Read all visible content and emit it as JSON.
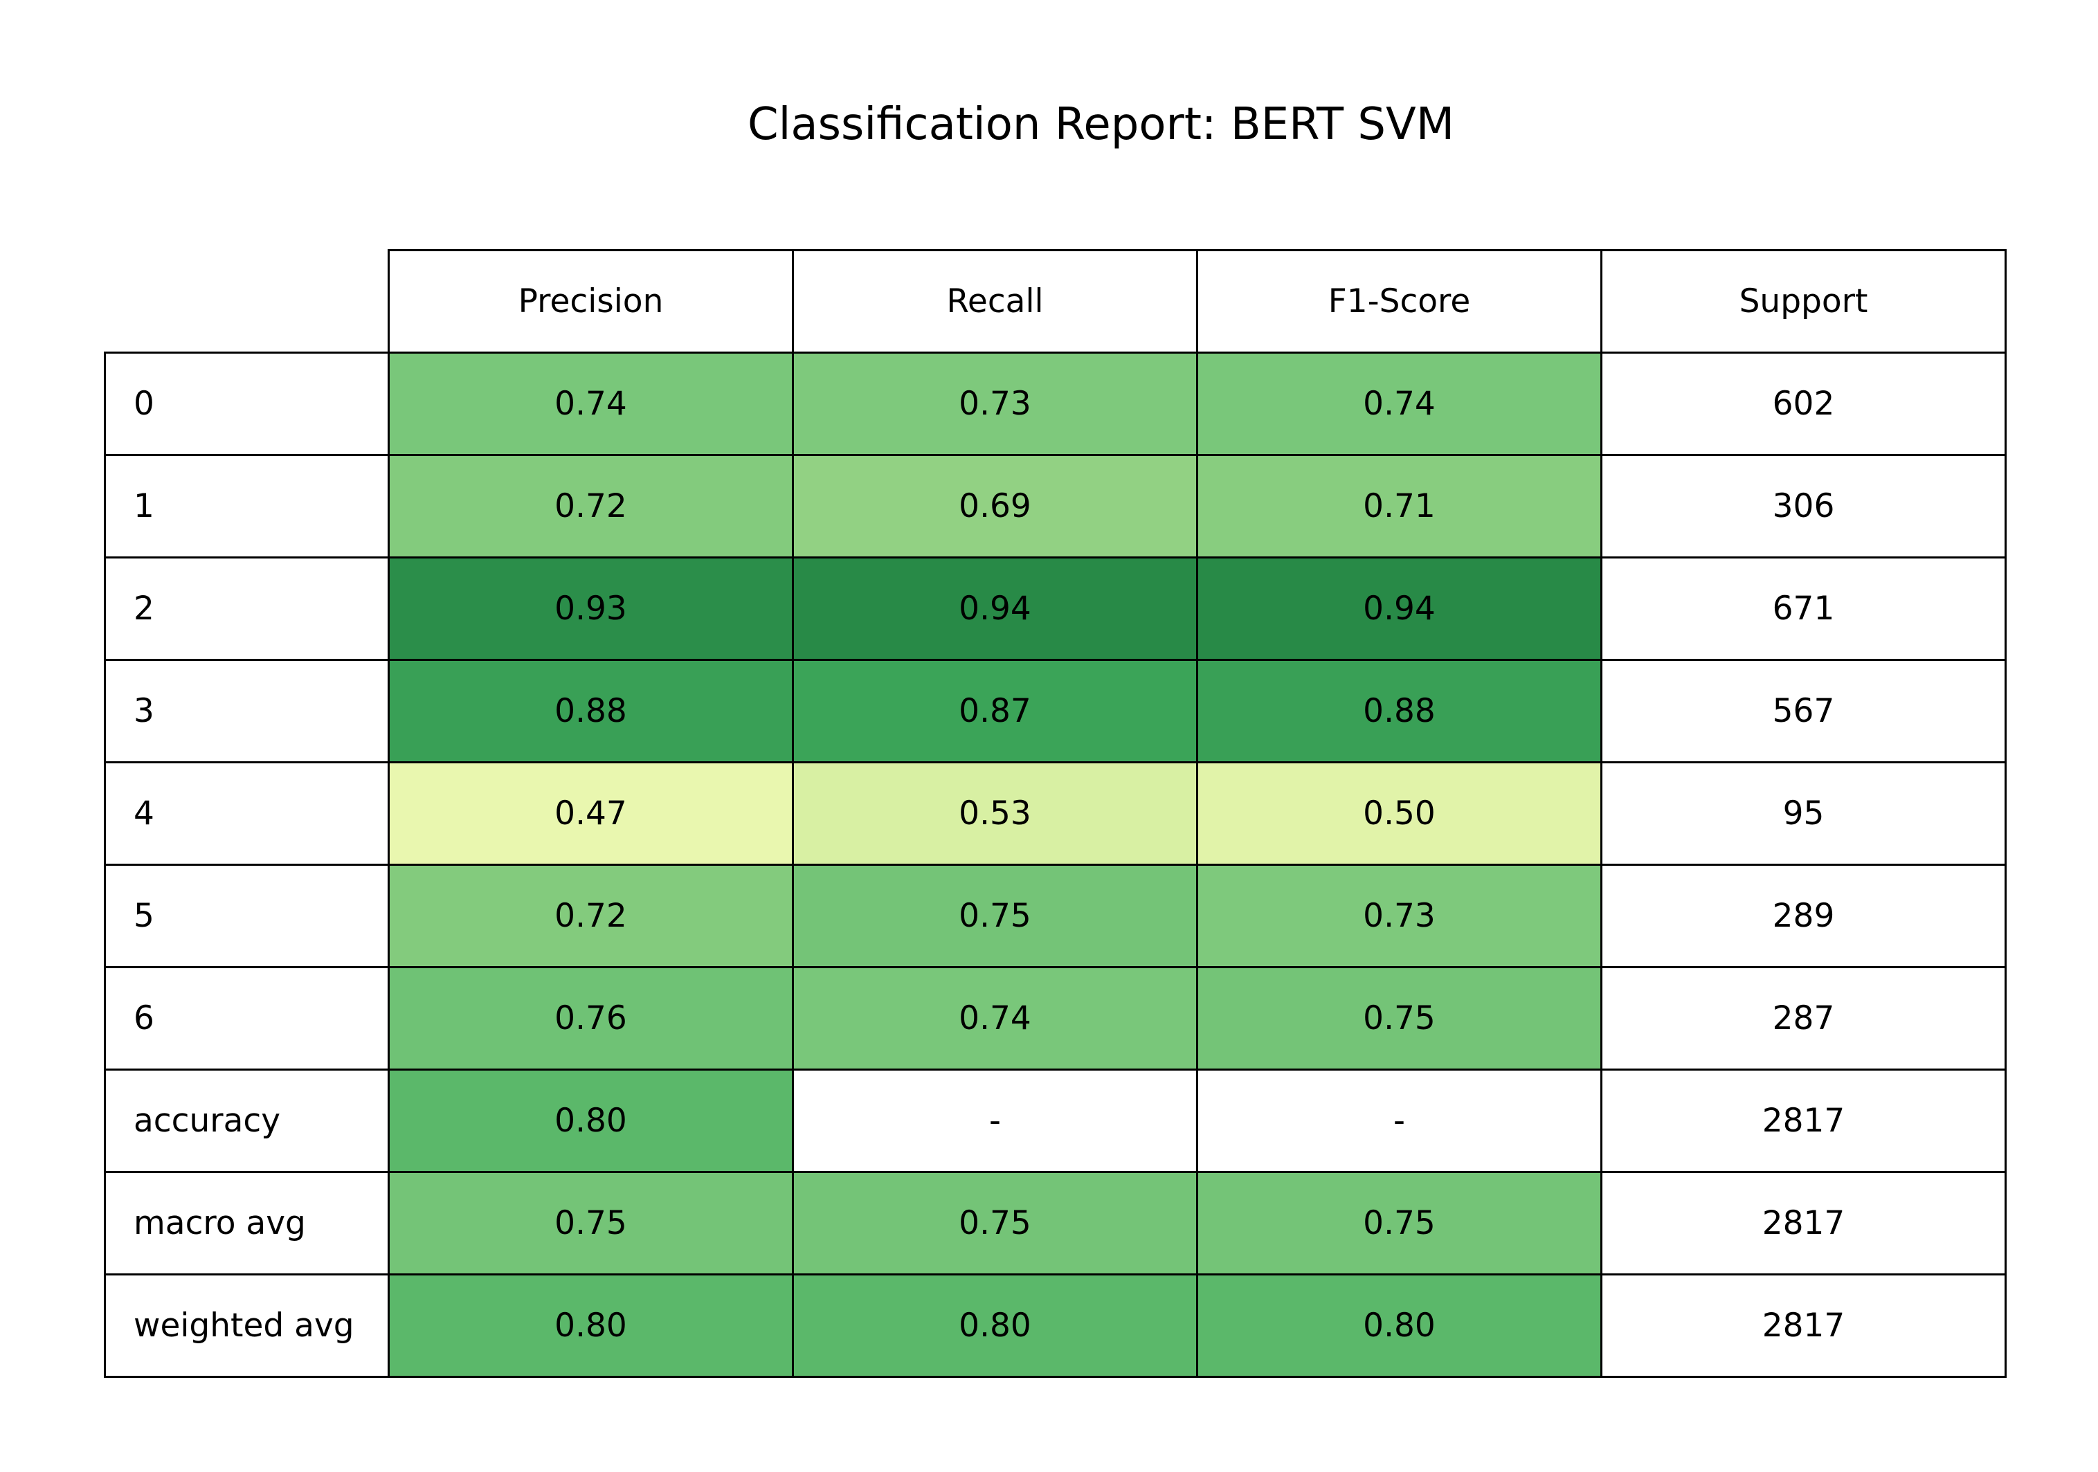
{
  "chart_data": {
    "type": "table",
    "title": "Classification Report: BERT SVM",
    "columns": [
      "Precision",
      "Recall",
      "F1-Score",
      "Support"
    ],
    "rows": [
      {
        "label": "0",
        "values": [
          "0.74",
          "0.73",
          "0.74",
          "602"
        ],
        "heat": [
          0.74,
          0.73,
          0.74,
          null
        ]
      },
      {
        "label": "1",
        "values": [
          "0.72",
          "0.69",
          "0.71",
          "306"
        ],
        "heat": [
          0.72,
          0.69,
          0.71,
          null
        ]
      },
      {
        "label": "2",
        "values": [
          "0.93",
          "0.94",
          "0.94",
          "671"
        ],
        "heat": [
          0.93,
          0.94,
          0.94,
          null
        ]
      },
      {
        "label": "3",
        "values": [
          "0.88",
          "0.87",
          "0.88",
          "567"
        ],
        "heat": [
          0.88,
          0.87,
          0.88,
          null
        ]
      },
      {
        "label": "4",
        "values": [
          "0.47",
          "0.53",
          "0.50",
          "95"
        ],
        "heat": [
          0.47,
          0.53,
          0.5,
          null
        ]
      },
      {
        "label": "5",
        "values": [
          "0.72",
          "0.75",
          "0.73",
          "289"
        ],
        "heat": [
          0.72,
          0.75,
          0.73,
          null
        ]
      },
      {
        "label": "6",
        "values": [
          "0.76",
          "0.74",
          "0.75",
          "287"
        ],
        "heat": [
          0.76,
          0.74,
          0.75,
          null
        ]
      },
      {
        "label": "accuracy",
        "values": [
          "0.80",
          "-",
          "-",
          "2817"
        ],
        "heat": [
          0.8,
          null,
          null,
          null
        ]
      },
      {
        "label": "macro avg",
        "values": [
          "0.75",
          "0.75",
          "0.75",
          "2817"
        ],
        "heat": [
          0.75,
          0.75,
          0.75,
          null
        ]
      },
      {
        "label": "weighted avg",
        "values": [
          "0.80",
          "0.80",
          "0.80",
          "2817"
        ],
        "heat": [
          0.8,
          0.8,
          0.8,
          null
        ]
      }
    ],
    "colormap": "YlGn",
    "color_range": [
      0.4,
      1.0
    ]
  }
}
